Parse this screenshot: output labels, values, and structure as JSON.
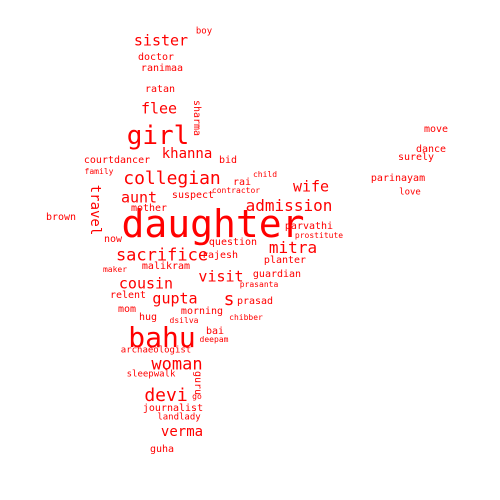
{
  "wordcloud": {
    "color": "#ff0000",
    "words": {
      "daughter": "daughter",
      "bahu": "bahu",
      "girl": "girl",
      "collegian": "collegian",
      "sacrifice": "sacrifice",
      "admission": "admission",
      "mitra": "mitra",
      "woman": "woman",
      "devi": "devi",
      "verma": "verma",
      "cousin": "cousin",
      "gupta": "gupta",
      "wife": "wife",
      "sister": "sister",
      "flee": "flee",
      "khanna": "khanna",
      "aunt": "aunt",
      "visit": "visit",
      "s": "s",
      "travel": "travel",
      "sharma": "sharma",
      "guru": "guru",
      "doctor": "doctor",
      "ranimaa": "ranimaa",
      "boy": "boy",
      "ratan": "ratan",
      "courtdancer": "courtdancer",
      "family": "family",
      "bid": "bid",
      "suspect": "suspect",
      "rai": "rai",
      "mother": "mother",
      "contractor": "contractor",
      "child": "child",
      "brown": "brown",
      "now": "now",
      "question": "question",
      "rajesh": "rajesh",
      "parvathi": "parvathi",
      "prostitute": "prostitute",
      "planter": "planter",
      "maker": "maker",
      "malikram": "malikram",
      "guardian": "guardian",
      "prasanta": "prasanta",
      "relent": "relent",
      "prasad": "prasad",
      "mom": "mom",
      "morning": "morning",
      "chibber": "chibber",
      "hug": "hug",
      "dsilva": "dsilva",
      "bai": "bai",
      "deepam": "deepam",
      "archaeologist": "archaeologist",
      "sleepwalk": "sleepwalk",
      "go": "go",
      "journalist": "journalist",
      "landlady": "landlady",
      "guha": "guha",
      "move": "move",
      "dance": "dance",
      "surely": "surely",
      "parinayam": "parinayam",
      "love": "love"
    }
  }
}
